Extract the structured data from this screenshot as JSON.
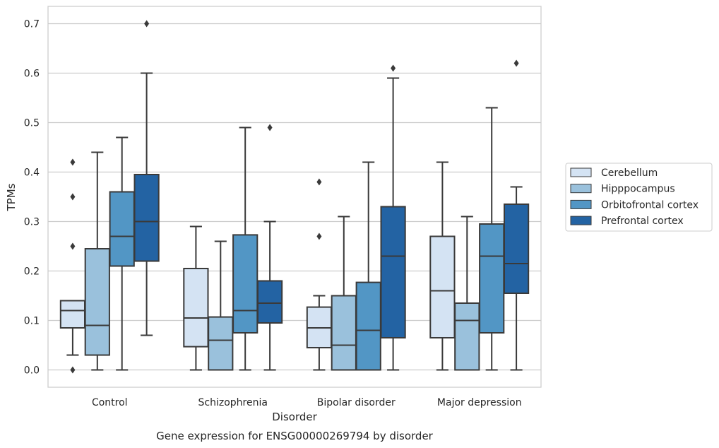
{
  "chart_data": {
    "type": "box",
    "title": "",
    "caption": "Gene expression for ENSG00000269794 by disorder",
    "xlabel": "Disorder",
    "ylabel": "TPMs",
    "ylim": [
      -0.035,
      0.735
    ],
    "yticks": [
      0.0,
      0.1,
      0.2,
      0.3,
      0.4,
      0.5,
      0.6,
      0.7
    ],
    "ytick_labels": [
      "0.0",
      "0.1",
      "0.2",
      "0.3",
      "0.4",
      "0.5",
      "0.6",
      "0.7"
    ],
    "grid": "horizontal",
    "legend_position": "right",
    "categories": [
      "Control",
      "Schizophrenia",
      "Bipolar disorder",
      "Major depression"
    ],
    "series": [
      {
        "name": "Cerebellum",
        "color": "#d4e3f3",
        "boxes": [
          {
            "whislo": 0.03,
            "q1": 0.085,
            "med": 0.12,
            "q3": 0.14,
            "whishi": 0.14,
            "fliers": [
              0.0,
              0.25,
              0.35,
              0.42
            ]
          },
          {
            "whislo": 0.0,
            "q1": 0.047,
            "med": 0.105,
            "q3": 0.205,
            "whishi": 0.29,
            "fliers": []
          },
          {
            "whislo": 0.0,
            "q1": 0.045,
            "med": 0.085,
            "q3": 0.127,
            "whishi": 0.15,
            "fliers": [
              0.27,
              0.38
            ]
          },
          {
            "whislo": 0.0,
            "q1": 0.065,
            "med": 0.16,
            "q3": 0.27,
            "whishi": 0.42,
            "fliers": []
          }
        ]
      },
      {
        "name": "Hipppocampus",
        "color": "#9ac1dc",
        "boxes": [
          {
            "whislo": 0.0,
            "q1": 0.03,
            "med": 0.09,
            "q3": 0.245,
            "whishi": 0.44,
            "fliers": []
          },
          {
            "whislo": 0.0,
            "q1": 0.0,
            "med": 0.06,
            "q3": 0.107,
            "whishi": 0.26,
            "fliers": []
          },
          {
            "whislo": 0.0,
            "q1": 0.0,
            "med": 0.05,
            "q3": 0.15,
            "whishi": 0.31,
            "fliers": []
          },
          {
            "whislo": 0.0,
            "q1": 0.0,
            "med": 0.1,
            "q3": 0.135,
            "whishi": 0.31,
            "fliers": []
          }
        ]
      },
      {
        "name": "Orbitofrontal cortex",
        "color": "#5296c5",
        "boxes": [
          {
            "whislo": 0.0,
            "q1": 0.21,
            "med": 0.27,
            "q3": 0.36,
            "whishi": 0.47,
            "fliers": []
          },
          {
            "whislo": 0.0,
            "q1": 0.075,
            "med": 0.12,
            "q3": 0.273,
            "whishi": 0.49,
            "fliers": []
          },
          {
            "whislo": 0.0,
            "q1": 0.0,
            "med": 0.08,
            "q3": 0.177,
            "whishi": 0.42,
            "fliers": []
          },
          {
            "whislo": 0.0,
            "q1": 0.075,
            "med": 0.23,
            "q3": 0.295,
            "whishi": 0.53,
            "fliers": []
          }
        ]
      },
      {
        "name": "Prefrontal cortex",
        "color": "#2363a3",
        "boxes": [
          {
            "whislo": 0.07,
            "q1": 0.22,
            "med": 0.3,
            "q3": 0.395,
            "whishi": 0.6,
            "fliers": [
              0.7
            ]
          },
          {
            "whislo": 0.0,
            "q1": 0.095,
            "med": 0.135,
            "q3": 0.18,
            "whishi": 0.3,
            "fliers": [
              0.49
            ]
          },
          {
            "whislo": 0.0,
            "q1": 0.065,
            "med": 0.23,
            "q3": 0.33,
            "whishi": 0.59,
            "fliers": [
              0.61
            ]
          },
          {
            "whislo": 0.0,
            "q1": 0.155,
            "med": 0.215,
            "q3": 0.335,
            "whishi": 0.37,
            "fliers": [
              0.62
            ]
          }
        ]
      }
    ]
  }
}
